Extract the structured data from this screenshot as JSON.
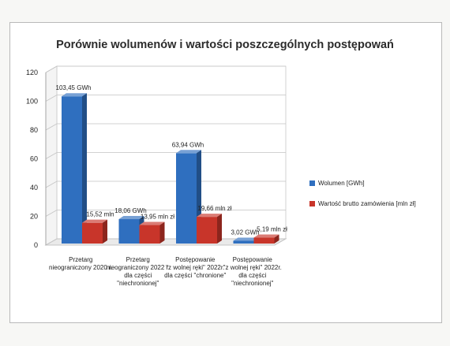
{
  "chart_data": {
    "type": "bar",
    "title": "Porównie wolumenów i wartości poszczególnych postępowań",
    "categories": [
      [
        "Przetarg",
        "nieograniczony 2020 r."
      ],
      [
        "Przetarg",
        "nieograniczony 2022 r.",
        "dla części",
        "\"niechronionej\""
      ],
      [
        "Postępowanie",
        "\"z wolnej ręki\" 2022r.",
        "dla części \"chronione\""
      ],
      [
        "Postępowanie",
        "\"z wolnej ręki\" 2022r.",
        "dla części",
        "\"niechronionej\""
      ]
    ],
    "series": [
      {
        "name": "Wolumen [GWh]",
        "color": "#2f6fbf",
        "values": [
          103.45,
          18.06,
          63.94,
          3.02
        ],
        "labels": [
          "103,45 GWh",
          "18,06 GWh",
          "63,94  GWh",
          "3,02 GWh"
        ]
      },
      {
        "name": "Wartość brutto zamówienia [mln zł]",
        "color": "#c8352a",
        "values": [
          15.52,
          13.95,
          19.66,
          5.19
        ],
        "labels": [
          "15,52 mln",
          "13,95 mln zł",
          "19,66 mln zł",
          "5,19 mln zł"
        ]
      }
    ],
    "yticks": [
      "0",
      "20",
      "40",
      "60",
      "80",
      "100",
      "120"
    ],
    "ylim": [
      0,
      120
    ],
    "grid": true,
    "legend": "right"
  }
}
